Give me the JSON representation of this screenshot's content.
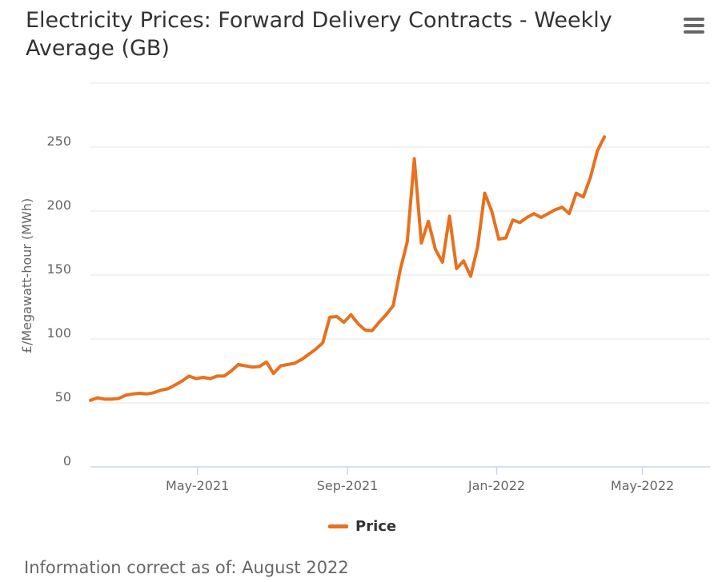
{
  "colors": {
    "series": "#e8701e",
    "grid": "#e6e6e6",
    "axis": "#ccd6eb",
    "text": "#666666"
  },
  "footer": {
    "text": "Information correct as of: August 2022"
  },
  "menu": {
    "icon": "hamburger-menu-icon"
  },
  "chart_data": {
    "type": "line",
    "title": "Electricity Prices: Forward Delivery Contracts - Weekly Average (GB)",
    "ylabel": "£/Megawatt-hour (MWh)",
    "xlabel": "",
    "ylim": [
      0,
      300
    ],
    "yticks": [
      0,
      50,
      100,
      150,
      200,
      250
    ],
    "xrange": [
      0,
      88
    ],
    "xticks": [
      {
        "label": "May-2021",
        "pos": 15.2
      },
      {
        "label": "Sep-2021",
        "pos": 36.5
      },
      {
        "label": "Jan-2022",
        "pos": 57.7
      },
      {
        "label": "May-2022",
        "pos": 78.4
      }
    ],
    "legend": [
      {
        "name": "Price",
        "position": "bottom-center"
      }
    ],
    "series": [
      {
        "name": "Price",
        "values": [
          52,
          54,
          53,
          53,
          53.5,
          56,
          57,
          57.5,
          57,
          58,
          60,
          61,
          64,
          67,
          71,
          69,
          70,
          69,
          71,
          71,
          75,
          80,
          79,
          78,
          78.5,
          82,
          73,
          79,
          80,
          81,
          84,
          88,
          92,
          97,
          117,
          117.5,
          113,
          119,
          112,
          107,
          106.5,
          113,
          119,
          126,
          154,
          176,
          241,
          175,
          192,
          170,
          160,
          196,
          155,
          161,
          149,
          172,
          214,
          200,
          178,
          179,
          193,
          191,
          195,
          198,
          195,
          198,
          201,
          203,
          198,
          214,
          211,
          226,
          247,
          258
        ]
      }
    ]
  }
}
